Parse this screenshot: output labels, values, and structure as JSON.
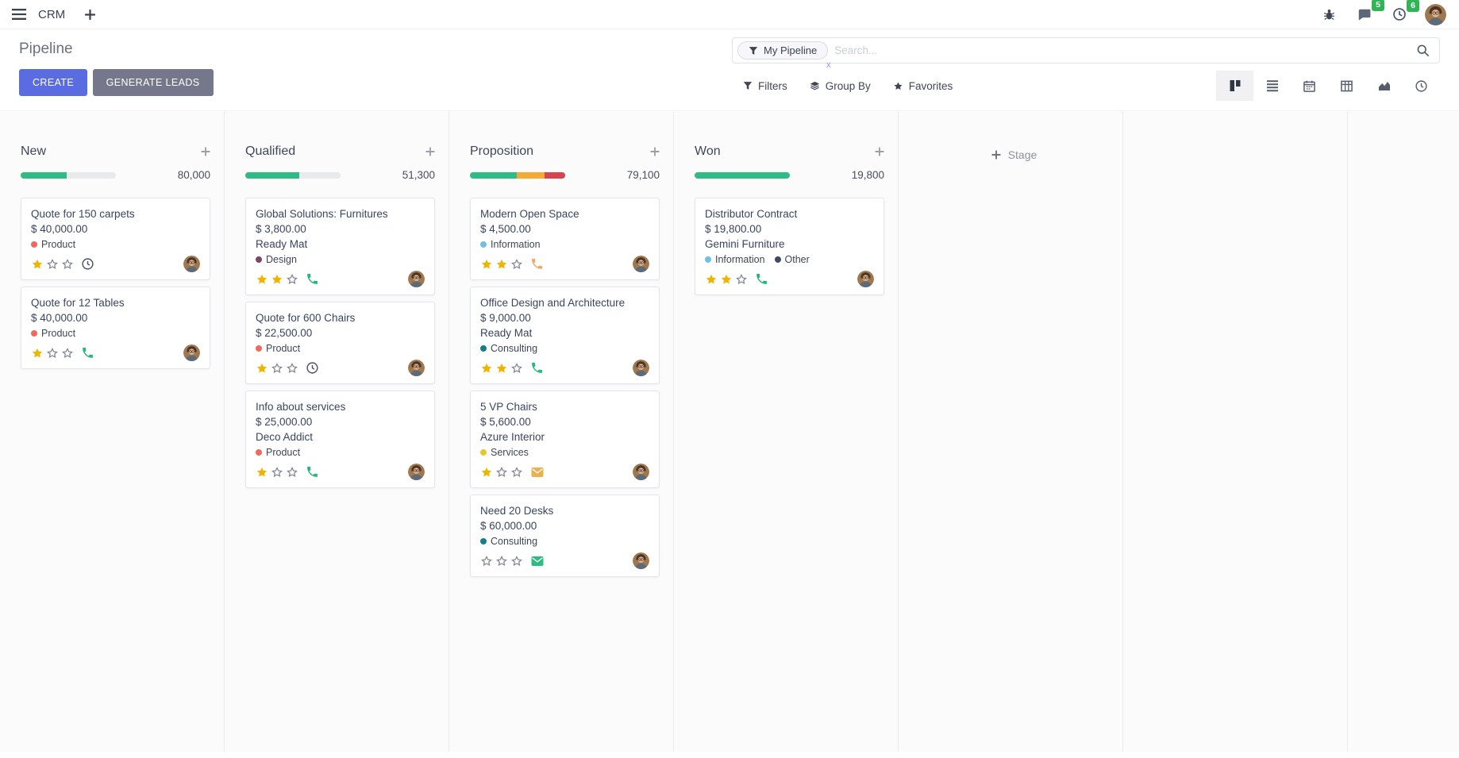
{
  "app": {
    "name": "CRM"
  },
  "navbar": {
    "messages_badge": "5",
    "activities_badge": "6"
  },
  "control_panel": {
    "title": "Pipeline",
    "create_label": "CREATE",
    "generate_leads_label": "GENERATE LEADS",
    "search": {
      "facet_label": "My Pipeline",
      "facet_remove": "x",
      "placeholder": "Search...",
      "value": ""
    },
    "filters_label": "Filters",
    "group_by_label": "Group By",
    "favorites_label": "Favorites",
    "views": [
      {
        "name": "kanban",
        "active": true
      },
      {
        "name": "list",
        "active": false
      },
      {
        "name": "calendar",
        "active": false
      },
      {
        "name": "pivot",
        "active": false
      },
      {
        "name": "graph",
        "active": false
      },
      {
        "name": "activity",
        "active": false
      }
    ]
  },
  "kanban": {
    "add_stage_label": "Stage",
    "stars_total": 3,
    "columns": [
      {
        "name": "New",
        "amount": "80,000",
        "progress": [
          {
            "color": "#2ebc85",
            "pct": 48
          },
          {
            "color": "#e8eaed",
            "pct": 52
          }
        ],
        "cards": [
          {
            "title": "Quote for 150 carpets",
            "amount": "$ 40,000.00",
            "partner": null,
            "tags": [
              {
                "label": "Product",
                "color": "#ee6a5c"
              }
            ],
            "stars": 1,
            "activity": {
              "type": "clock",
              "color": "#4a5161"
            }
          },
          {
            "title": "Quote for 12 Tables",
            "amount": "$ 40,000.00",
            "partner": null,
            "tags": [
              {
                "label": "Product",
                "color": "#ee6a5c"
              }
            ],
            "stars": 1,
            "activity": {
              "type": "phone",
              "color": "#21bb78"
            }
          }
        ]
      },
      {
        "name": "Qualified",
        "amount": "51,300",
        "progress": [
          {
            "color": "#2ebc85",
            "pct": 57
          },
          {
            "color": "#e8eaed",
            "pct": 43
          }
        ],
        "cards": [
          {
            "title": "Global Solutions: Furnitures",
            "amount": "$ 3,800.00",
            "partner": "Ready Mat",
            "tags": [
              {
                "label": "Design",
                "color": "#7a4665"
              }
            ],
            "stars": 2,
            "activity": {
              "type": "phone",
              "color": "#21bb78"
            }
          },
          {
            "title": "Quote for 600 Chairs",
            "amount": "$ 22,500.00",
            "partner": null,
            "tags": [
              {
                "label": "Product",
                "color": "#ee6a5c"
              }
            ],
            "stars": 1,
            "activity": {
              "type": "clock",
              "color": "#4a5161"
            }
          },
          {
            "title": "Info about services",
            "amount": "$ 25,000.00",
            "partner": "Deco Addict",
            "tags": [
              {
                "label": "Product",
                "color": "#ee6a5c"
              }
            ],
            "stars": 1,
            "activity": {
              "type": "phone",
              "color": "#21bb78"
            }
          }
        ]
      },
      {
        "name": "Proposition",
        "amount": "79,100",
        "progress": [
          {
            "color": "#2ebc85",
            "pct": 49
          },
          {
            "color": "#f5ab33",
            "pct": 29
          },
          {
            "color": "#d8434e",
            "pct": 22
          }
        ],
        "cards": [
          {
            "title": "Modern Open Space",
            "amount": "$ 4,500.00",
            "partner": null,
            "tags": [
              {
                "label": "Information",
                "color": "#6fbfe8"
              }
            ],
            "stars": 2,
            "activity": {
              "type": "phone",
              "color": "#f0a862"
            }
          },
          {
            "title": "Office Design and Architecture",
            "amount": "$ 9,000.00",
            "partner": "Ready Mat",
            "tags": [
              {
                "label": "Consulting",
                "color": "#177e89"
              }
            ],
            "stars": 2,
            "activity": {
              "type": "phone",
              "color": "#21bb78"
            }
          },
          {
            "title": "5 VP Chairs",
            "amount": "$ 5,600.00",
            "partner": "Azure Interior",
            "tags": [
              {
                "label": "Services",
                "color": "#e9c62d"
              }
            ],
            "stars": 1,
            "activity": {
              "type": "mail",
              "color": "#eeb04c"
            }
          },
          {
            "title": "Need 20 Desks",
            "amount": "$ 60,000.00",
            "partner": null,
            "tags": [
              {
                "label": "Consulting",
                "color": "#177e89"
              }
            ],
            "stars": 0,
            "activity": {
              "type": "mail",
              "color": "#2ebc85"
            }
          }
        ]
      },
      {
        "name": "Won",
        "amount": "19,800",
        "progress": [
          {
            "color": "#2ebc85",
            "pct": 100
          }
        ],
        "cards": [
          {
            "title": "Distributor Contract",
            "amount": "$ 19,800.00",
            "partner": "Gemini Furniture",
            "tags": [
              {
                "label": "Information",
                "color": "#6fbfe8"
              },
              {
                "label": "Other",
                "color": "#3f4a63"
              }
            ],
            "stars": 2,
            "activity": {
              "type": "phone",
              "color": "#21bb78"
            }
          }
        ]
      }
    ]
  },
  "colors": {
    "primary": "#5b6ce0",
    "secondary_button": "#74788a",
    "star_filled": "#f0b400",
    "star_empty": "#7d828f",
    "badge": "#30b455",
    "progress_green": "#2ebc85",
    "progress_orange": "#f5ab33",
    "progress_red": "#d8434e",
    "tag_product": "#ee6a5c",
    "tag_design": "#7a4665",
    "tag_information": "#6fbfe8",
    "tag_consulting": "#177e89",
    "tag_services": "#e9c62d",
    "tag_other": "#3f4a63"
  }
}
